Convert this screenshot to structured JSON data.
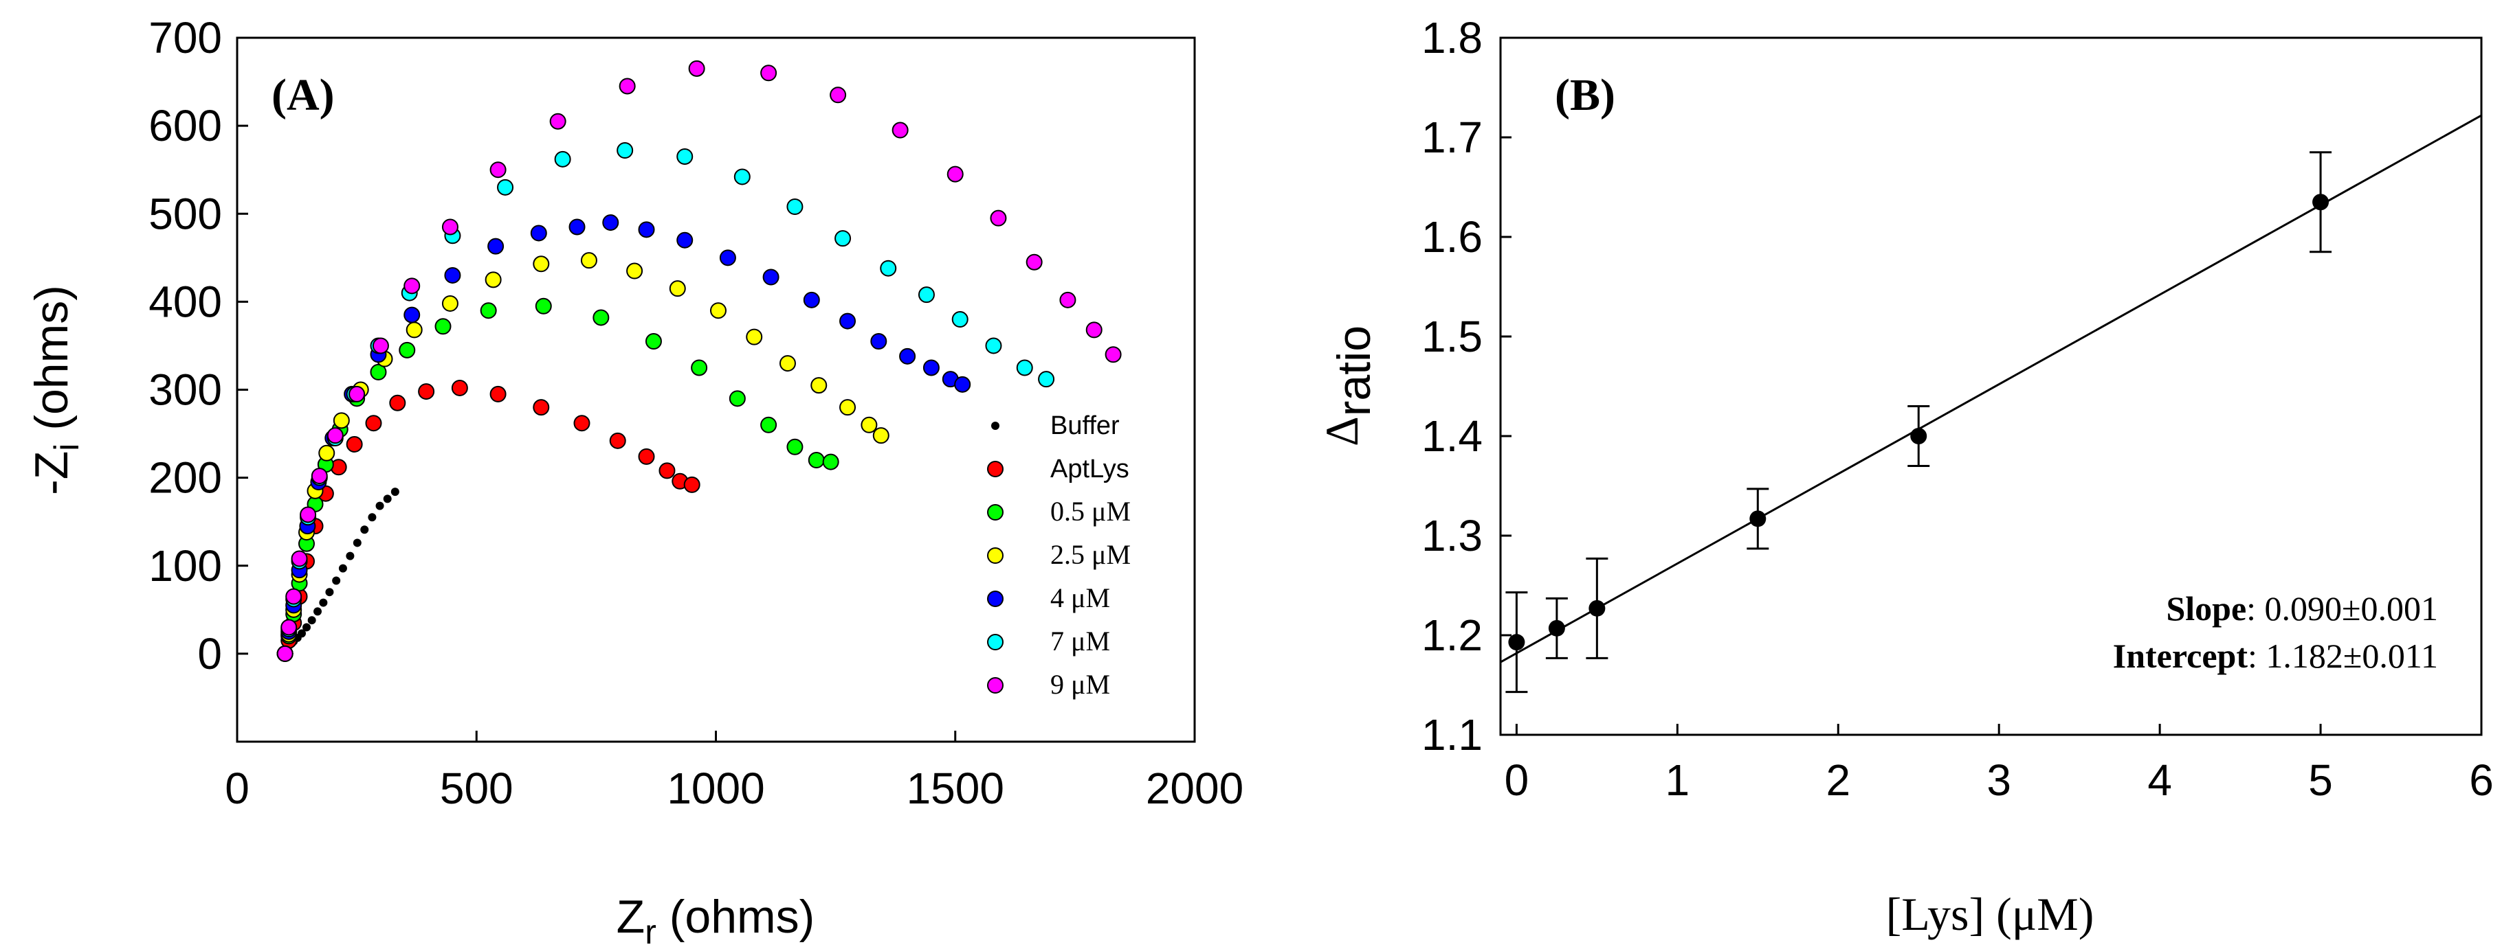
{
  "chart_data": [
    {
      "type": "scatter",
      "panel_label": "(A)",
      "xlabel_main": "Z",
      "xlabel_sub": "r",
      "xlabel_rest": " (ohms)",
      "ylabel_main": "-Z",
      "ylabel_sub": "i",
      "ylabel_rest": " (ohms)",
      "xlim": [
        0,
        2000
      ],
      "ylim": [
        -100,
        700
      ],
      "xticks": [
        0,
        500,
        1000,
        1500,
        2000
      ],
      "xtick_labels": [
        "0",
        "500",
        "1000",
        "1500",
        "2000"
      ],
      "yticks": [
        0,
        100,
        200,
        300,
        400,
        500,
        600,
        700
      ],
      "ytick_labels": [
        "0",
        "100",
        "200",
        "300",
        "400",
        "500",
        "600",
        "700"
      ],
      "legend_position": "lower-right",
      "series": [
        {
          "name": "Buffer",
          "color": "#000000",
          "marker": "small-dot",
          "x": [
            100,
            105,
            110,
            118,
            126,
            135,
            145,
            156,
            168,
            180,
            193,
            207,
            221,
            236,
            251,
            266,
            282,
            298,
            314,
            330
          ],
          "y": [
            0,
            5,
            10,
            14,
            18,
            23,
            30,
            38,
            48,
            58,
            70,
            83,
            97,
            111,
            126,
            141,
            155,
            168,
            176,
            184
          ]
        },
        {
          "name": "AptLys",
          "color": "#ff0000",
          "marker": "circle",
          "x": [
            100,
            108,
            118,
            130,
            145,
            163,
            185,
            212,
            245,
            285,
            335,
            395,
            465,
            545,
            635,
            720,
            795,
            855,
            898,
            925,
            950
          ],
          "y": [
            0,
            15,
            35,
            65,
            105,
            145,
            182,
            212,
            238,
            262,
            285,
            298,
            302,
            295,
            280,
            262,
            242,
            224,
            208,
            196,
            192
          ]
        },
        {
          "name": "0.5 μM",
          "color": "#00ff00",
          "marker": "circle",
          "x": [
            100,
            108,
            118,
            130,
            145,
            163,
            185,
            215,
            250,
            295,
            355,
            430,
            525,
            640,
            760,
            870,
            965,
            1045,
            1110,
            1165,
            1210,
            1240
          ],
          "y": [
            0,
            20,
            45,
            80,
            125,
            170,
            215,
            255,
            290,
            320,
            345,
            372,
            390,
            395,
            382,
            355,
            325,
            290,
            260,
            235,
            220,
            218
          ]
        },
        {
          "name": "2.5 μM",
          "color": "#ffff00",
          "marker": "circle",
          "x": [
            100,
            108,
            118,
            130,
            145,
            163,
            187,
            218,
            258,
            308,
            370,
            445,
            535,
            635,
            735,
            830,
            920,
            1005,
            1080,
            1150,
            1215,
            1275,
            1320,
            1345
          ],
          "y": [
            0,
            22,
            50,
            90,
            138,
            185,
            228,
            265,
            300,
            335,
            368,
            398,
            425,
            443,
            447,
            435,
            415,
            390,
            360,
            330,
            305,
            280,
            260,
            248
          ]
        },
        {
          "name": "4 μM",
          "color": "#0000ff",
          "marker": "circle",
          "x": [
            100,
            108,
            118,
            130,
            147,
            170,
            200,
            240,
            295,
            365,
            450,
            540,
            630,
            710,
            780,
            855,
            935,
            1025,
            1115,
            1200,
            1275,
            1340,
            1400,
            1450,
            1490,
            1515
          ],
          "y": [
            0,
            25,
            55,
            95,
            145,
            195,
            245,
            295,
            340,
            385,
            430,
            463,
            478,
            485,
            490,
            482,
            470,
            450,
            428,
            402,
            378,
            355,
            338,
            325,
            312,
            306
          ]
        },
        {
          "name": "7 μM",
          "color": "#00ffff",
          "marker": "circle",
          "x": [
            100,
            108,
            118,
            130,
            148,
            172,
            205,
            245,
            295,
            360,
            450,
            560,
            680,
            810,
            935,
            1055,
            1165,
            1265,
            1360,
            1440,
            1510,
            1580,
            1645,
            1690
          ],
          "y": [
            0,
            28,
            62,
            105,
            155,
            200,
            245,
            295,
            350,
            410,
            475,
            530,
            562,
            572,
            565,
            542,
            508,
            472,
            438,
            408,
            380,
            350,
            325,
            312
          ]
        },
        {
          "name": "9 μM",
          "color": "#ff00ff",
          "marker": "circle",
          "x": [
            100,
            108,
            118,
            130,
            148,
            172,
            205,
            250,
            300,
            365,
            445,
            545,
            670,
            815,
            960,
            1110,
            1255,
            1385,
            1500,
            1590,
            1665,
            1735,
            1790,
            1830
          ],
          "y": [
            0,
            30,
            65,
            108,
            158,
            202,
            248,
            295,
            350,
            418,
            485,
            550,
            605,
            645,
            665,
            660,
            635,
            595,
            545,
            495,
            445,
            402,
            368,
            340
          ]
        }
      ]
    },
    {
      "type": "scatter",
      "panel_label": "(B)",
      "xlabel": "[Lys] (μM)",
      "ylabel_prefix": "Δ",
      "ylabel_rest": "ratio",
      "xlim": [
        -0.1,
        6
      ],
      "ylim": [
        1.1,
        1.8
      ],
      "xticks": [
        0,
        1,
        2,
        3,
        4,
        5,
        6
      ],
      "xtick_labels": [
        "0",
        "1",
        "2",
        "3",
        "4",
        "5",
        "6"
      ],
      "yticks": [
        1.1,
        1.2,
        1.3,
        1.4,
        1.5,
        1.6,
        1.7,
        1.8
      ],
      "ytick_labels": [
        "1.1",
        "1.2",
        "1.3",
        "1.4",
        "1.5",
        "1.6",
        "1.7",
        "1.8"
      ],
      "points": {
        "x": [
          0,
          0.25,
          0.5,
          1.5,
          2.5,
          5
        ],
        "y": [
          1.193,
          1.207,
          1.227,
          1.317,
          1.4,
          1.635
        ],
        "err": [
          0.05,
          0.03,
          0.05,
          0.03,
          0.03,
          0.05
        ]
      },
      "fit": {
        "slope": 0.09,
        "intercept": 1.182
      },
      "annotation": {
        "slope_label": "Slope",
        "slope_value": ": 0.090±0.001",
        "intercept_label": "Intercept",
        "intercept_value": ": 1.182±0.011"
      }
    }
  ]
}
